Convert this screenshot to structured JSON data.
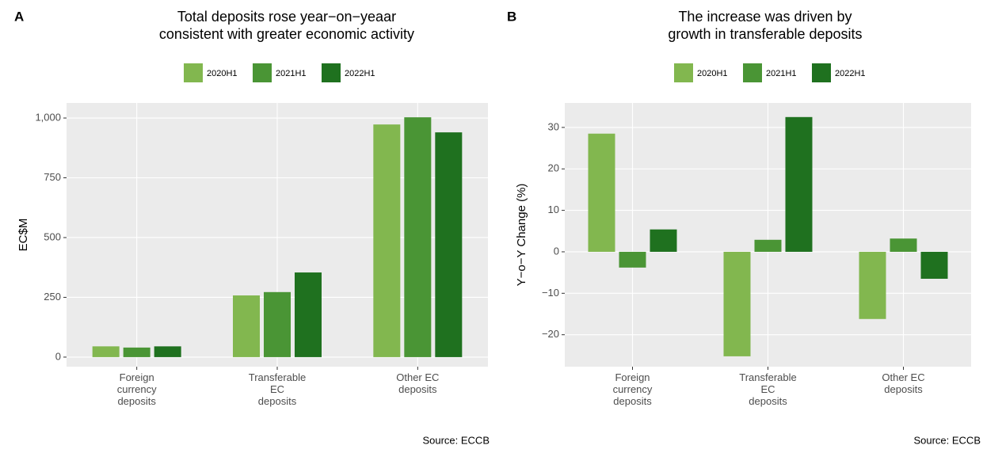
{
  "chart_data": [
    {
      "type": "bar",
      "panel_label": "A",
      "title": "Total deposits rose year−on−yeaar\nconsistent with greater economic activity",
      "y_label": "EC$M",
      "caption": "Source: ECCB",
      "categories": [
        "Foreign\ncurrency\ndeposits",
        "Transferable\nEC\ndeposits",
        "Other EC\ndeposits"
      ],
      "series": [
        {
          "name": "2020H1",
          "color": "#82b74f",
          "values": [
            45,
            258,
            973
          ]
        },
        {
          "name": "2021H1",
          "color": "#4a9535",
          "values": [
            40,
            272,
            1003
          ]
        },
        {
          "name": "2022H1",
          "color": "#1f711f",
          "values": [
            45,
            354,
            940
          ]
        }
      ],
      "ylim": [
        -40,
        1063
      ],
      "yticks": [
        0,
        250,
        500,
        750,
        {
          "value": 1000,
          "label": "1,000"
        }
      ],
      "grid": true
    },
    {
      "type": "bar",
      "panel_label": "B",
      "title": "The increase was driven by\ngrowth in transferable deposits",
      "y_label": "Y−o−Y Change (%)",
      "caption": "Source: ECCB",
      "categories": [
        "Foreign\ncurrency\ndeposits",
        "Transferable\nEC\ndeposits",
        "Other EC\ndeposits"
      ],
      "series": [
        {
          "name": "2020H1",
          "color": "#82b74f",
          "values": [
            28.5,
            -25.2,
            -16.2
          ]
        },
        {
          "name": "2021H1",
          "color": "#4a9535",
          "values": [
            -3.8,
            2.9,
            3.2
          ]
        },
        {
          "name": "2022H1",
          "color": "#1f711f",
          "values": [
            5.4,
            32.5,
            -6.5
          ]
        }
      ],
      "ylim": [
        -27.7,
        35.9
      ],
      "yticks": [
        {
          "value": -20,
          "label": "−20"
        },
        {
          "value": -10,
          "label": "−10"
        },
        0,
        10,
        20,
        30
      ],
      "grid": true
    }
  ]
}
